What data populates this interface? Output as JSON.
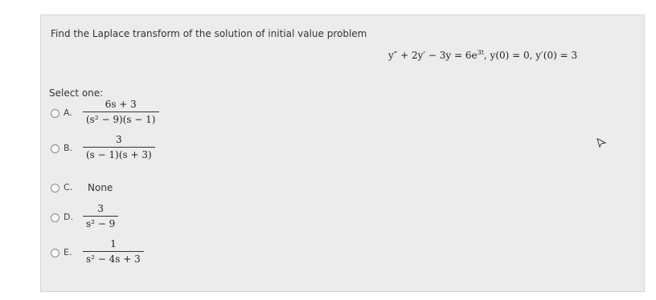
{
  "question": {
    "prompt": "Find the Laplace transform of the solution of initial value problem",
    "equation": {
      "main": "y″ + 2y′ − 3y = 6e",
      "exponent": "3t",
      "rest": ",   y(0) = 0,  y′(0) = 3"
    },
    "select_label": "Select one:",
    "options": [
      {
        "letter": "A.",
        "numerator": "6s + 3",
        "denominator": "(s² − 9)(s − 1)"
      },
      {
        "letter": "B.",
        "numerator": "3",
        "denominator": "(s − 1)(s + 3)"
      },
      {
        "letter": "C.",
        "text": "None"
      },
      {
        "letter": "D.",
        "numerator": "3",
        "denominator": "s² − 9"
      },
      {
        "letter": "E.",
        "numerator": "1",
        "denominator": "s² − 4s + 3"
      }
    ]
  }
}
